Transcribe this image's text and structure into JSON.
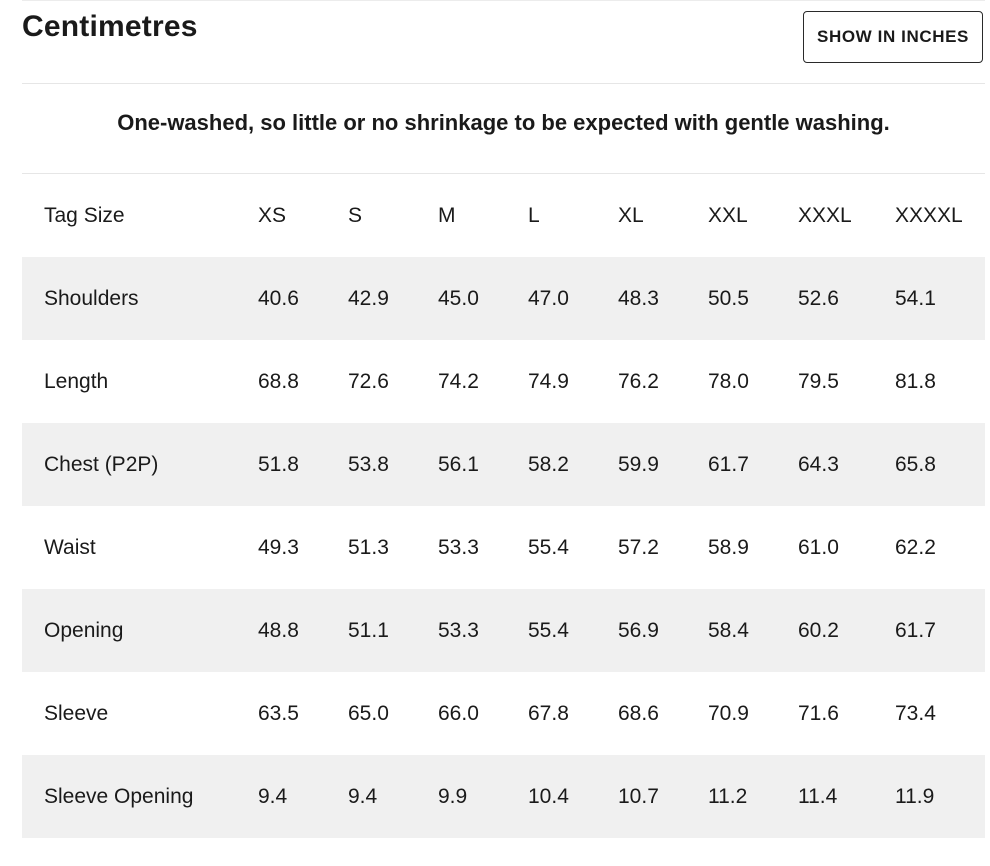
{
  "header": {
    "title": "Centimetres",
    "toggle_label": "SHOW IN INCHES"
  },
  "note": "One-washed, so little or no shrinkage to be expected with gentle washing.",
  "table": {
    "header_label": "Tag Size",
    "sizes": [
      "XS",
      "S",
      "M",
      "L",
      "XL",
      "XXL",
      "XXXL",
      "XXXXL"
    ],
    "rows": [
      {
        "label": "Shoulders",
        "values": [
          "40.6",
          "42.9",
          "45.0",
          "47.0",
          "48.3",
          "50.5",
          "52.6",
          "54.1"
        ]
      },
      {
        "label": "Length",
        "values": [
          "68.8",
          "72.6",
          "74.2",
          "74.9",
          "76.2",
          "78.0",
          "79.5",
          "81.8"
        ]
      },
      {
        "label": "Chest (P2P)",
        "values": [
          "51.8",
          "53.8",
          "56.1",
          "58.2",
          "59.9",
          "61.7",
          "64.3",
          "65.8"
        ]
      },
      {
        "label": "Waist",
        "values": [
          "49.3",
          "51.3",
          "53.3",
          "55.4",
          "57.2",
          "58.9",
          "61.0",
          "62.2"
        ]
      },
      {
        "label": "Opening",
        "values": [
          "48.8",
          "51.1",
          "53.3",
          "55.4",
          "56.9",
          "58.4",
          "60.2",
          "61.7"
        ]
      },
      {
        "label": "Sleeve",
        "values": [
          "63.5",
          "65.0",
          "66.0",
          "67.8",
          "68.6",
          "70.9",
          "71.6",
          "73.4"
        ]
      },
      {
        "label": "Sleeve Opening",
        "values": [
          "9.4",
          "9.4",
          "9.9",
          "10.4",
          "10.7",
          "11.2",
          "11.4",
          "11.9"
        ]
      }
    ]
  }
}
